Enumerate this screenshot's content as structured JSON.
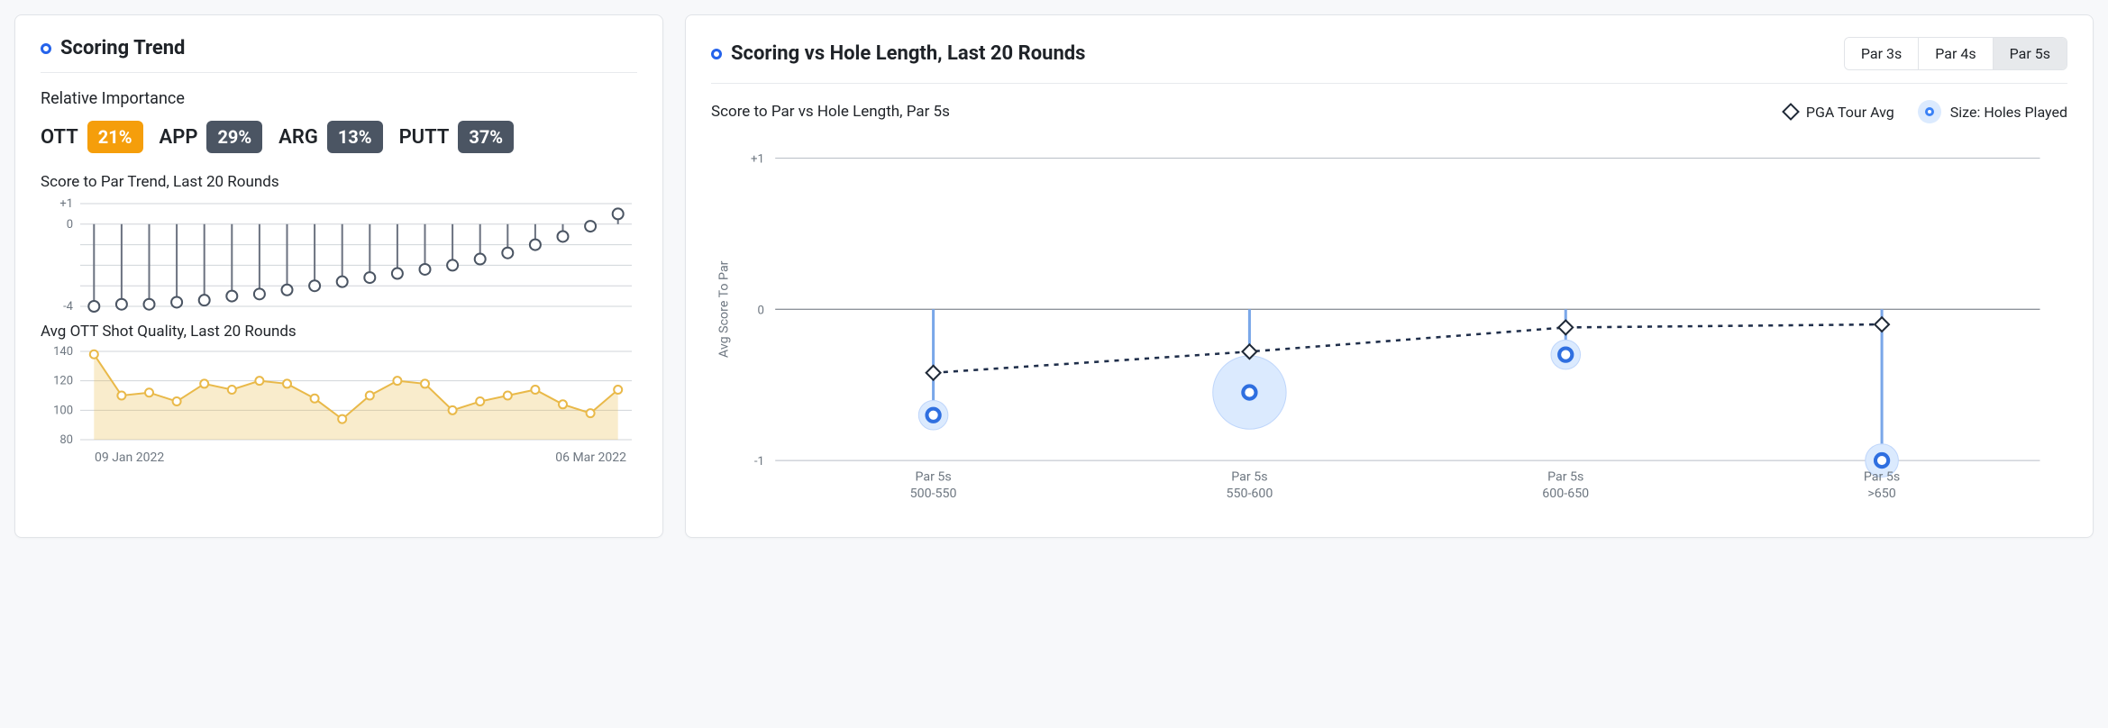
{
  "left": {
    "title": "Scoring Trend",
    "relative_importance_label": "Relative Importance",
    "badges": [
      {
        "key": "OTT",
        "value": "21%",
        "highlight": true
      },
      {
        "key": "APP",
        "value": "29%",
        "highlight": false
      },
      {
        "key": "ARG",
        "value": "13%",
        "highlight": false
      },
      {
        "key": "PUTT",
        "value": "37%",
        "highlight": false
      }
    ],
    "trend_chart": {
      "title": "Score to Par Trend, Last 20 Rounds",
      "type": "lollipop",
      "ymin": -4,
      "ymax": 1,
      "ytick_step": 1,
      "yticks_shown": [
        1,
        0,
        -4
      ],
      "values": [
        -4.0,
        -3.9,
        -3.9,
        -3.8,
        -3.7,
        -3.5,
        -3.4,
        -3.2,
        -3.0,
        -2.8,
        -2.6,
        -2.4,
        -2.2,
        -2.0,
        -1.7,
        -1.4,
        -1.0,
        -0.6,
        -0.1,
        0.5
      ],
      "stem_color": "#6b7280",
      "marker_stroke": "#4b5563",
      "marker_fill": "#ffffff",
      "marker_r": 6,
      "grid_color": "#d0d4d9",
      "date_start": "09 Jan 2022",
      "date_end": "06 Mar 2022"
    },
    "ott_chart": {
      "title": "Avg OTT Shot Quality, Last 20 Rounds",
      "type": "area",
      "ymin": 80,
      "ymax": 140,
      "ytick_step": 20,
      "values": [
        138,
        110,
        112,
        106,
        118,
        114,
        120,
        118,
        108,
        94,
        110,
        120,
        118,
        100,
        106,
        110,
        114,
        104,
        98,
        114
      ],
      "line_color": "#e9b949",
      "fill_color": "rgba(233,185,73,0.28)",
      "marker_stroke": "#e9b949",
      "marker_fill": "#ffffff",
      "marker_r": 4.5,
      "grid_color": "#d0d4d9"
    }
  },
  "right": {
    "title": "Scoring vs Hole Length, Last 20 Rounds",
    "tabs": [
      {
        "label": "Par 3s",
        "active": false
      },
      {
        "label": "Par 4s",
        "active": false
      },
      {
        "label": "Par 5s",
        "active": true
      }
    ],
    "subtitle": "Score to Par vs Hole Length, Par 5s",
    "legend": {
      "pga": "PGA Tour Avg",
      "size": "Size: Holes Played"
    },
    "chart": {
      "type": "lollipop+line",
      "y_axis_label": "Avg Score To Par",
      "ymin": -1,
      "ymax": 1,
      "ytick_step": 1,
      "categories": [
        {
          "l1": "Par 5s",
          "l2": "500-550"
        },
        {
          "l1": "Par 5s",
          "l2": "550-600"
        },
        {
          "l1": "Par 5s",
          "l2": "600-650"
        },
        {
          "l1": "Par 5s",
          "l2": ">650"
        }
      ],
      "player_values": [
        -0.7,
        -0.55,
        -0.3,
        -1.0
      ],
      "bubble_sizes": [
        16,
        40,
        16,
        18
      ],
      "pga_values": [
        -0.42,
        -0.28,
        -0.12,
        -0.1
      ],
      "stem_color": "#7aa7e9",
      "bubble_fill": "#dbeafe",
      "bubble_stroke": "#bfd6fb",
      "inner_ring_stroke": "#2f6fe0",
      "pga_line_color": "#1f2e4a",
      "diamond_fill": "#ffffff",
      "diamond_stroke": "#1f2937",
      "diamond_size": 11,
      "grid_color": "#b9bec6",
      "zero_color": "#8f949c"
    }
  }
}
